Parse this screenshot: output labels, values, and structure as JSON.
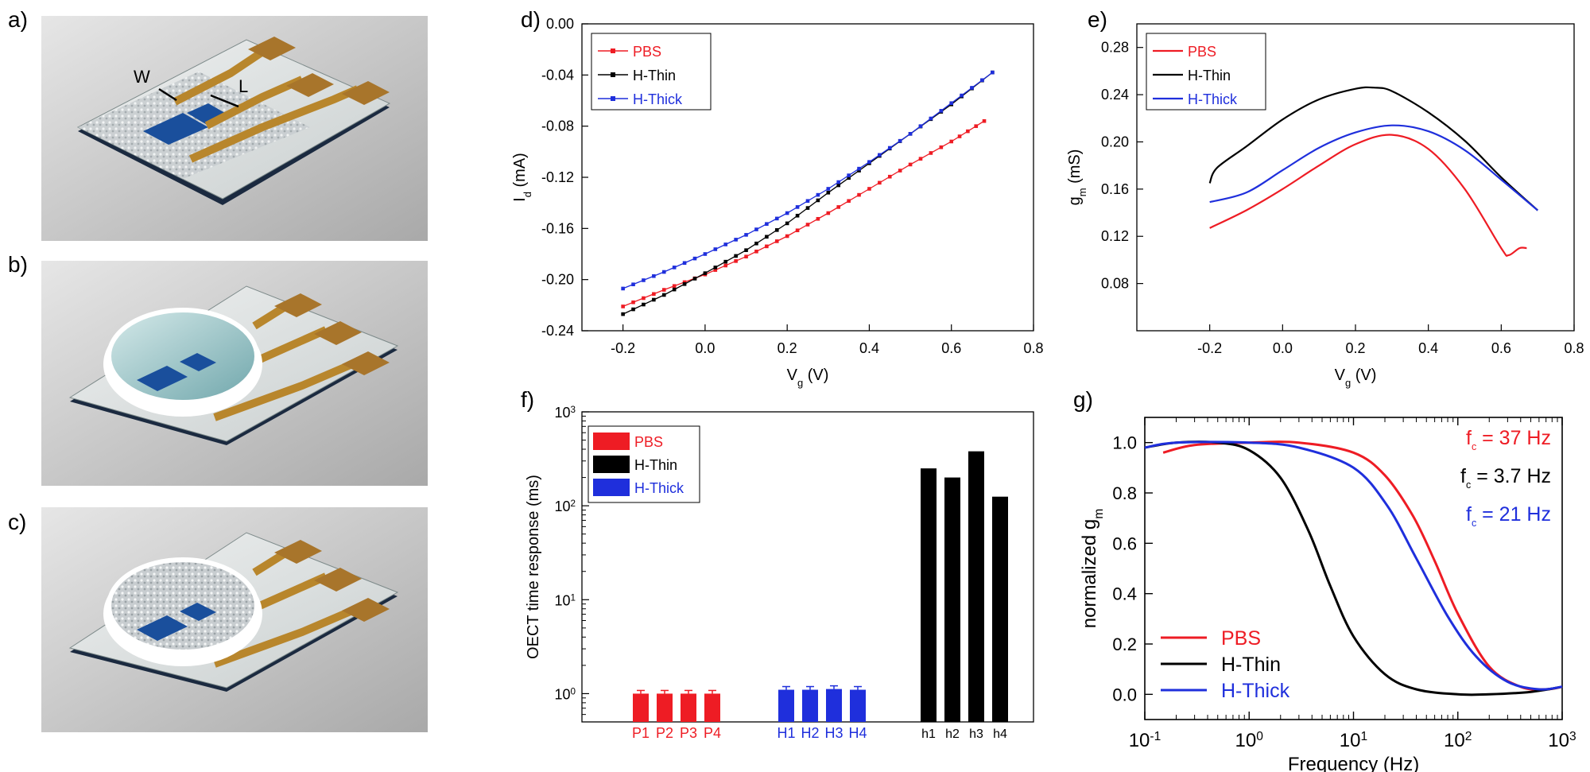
{
  "panel_labels": [
    "a)",
    "b)",
    "c)",
    "d)",
    "e)",
    "f)",
    "g)"
  ],
  "device_labels": {
    "width": "W",
    "length": "L"
  },
  "colors": {
    "pbs": "#ee1c24",
    "h_thin": "#000000",
    "h_thick": "#1f2fdc",
    "gold": "#b8862c",
    "pad": "#a8752b",
    "channel": "#1a4f9c",
    "substrate": "#d8dcdc"
  },
  "chart_data": [
    {
      "id": "d",
      "type": "line",
      "xlabel": "V",
      "xlabel_sub": "g",
      "xlabel_unit": " (V)",
      "ylabel": "I",
      "ylabel_sub": "d",
      "ylabel_unit": " (mA)",
      "xlim": [
        -0.3,
        0.8
      ],
      "ylim": [
        -0.24,
        0.0
      ],
      "xticks": [
        "-0.2",
        "0.0",
        "0.2",
        "0.4",
        "0.6",
        "0.8"
      ],
      "yticks": [
        "0.00",
        "-0.04",
        "-0.08",
        "-0.12",
        "-0.16",
        "-0.20",
        "-0.24"
      ],
      "legend": [
        "PBS",
        "H-Thin",
        "H-Thick"
      ],
      "series": [
        {
          "name": "PBS",
          "x": [
            -0.2,
            -0.1,
            0.0,
            0.1,
            0.2,
            0.3,
            0.4,
            0.5,
            0.6,
            0.68
          ],
          "y": [
            -0.221,
            -0.208,
            -0.196,
            -0.182,
            -0.166,
            -0.148,
            -0.129,
            -0.11,
            -0.092,
            -0.076
          ]
        },
        {
          "name": "H-Thin",
          "x": [
            -0.2,
            -0.1,
            0.0,
            0.1,
            0.2,
            0.3,
            0.4,
            0.5,
            0.6,
            0.7
          ],
          "y": [
            -0.227,
            -0.212,
            -0.195,
            -0.177,
            -0.156,
            -0.132,
            -0.109,
            -0.086,
            -0.063,
            -0.038
          ]
        },
        {
          "name": "H-Thick",
          "x": [
            -0.2,
            -0.1,
            0.0,
            0.1,
            0.2,
            0.3,
            0.4,
            0.5,
            0.6,
            0.7
          ],
          "y": [
            -0.207,
            -0.194,
            -0.18,
            -0.165,
            -0.148,
            -0.129,
            -0.108,
            -0.086,
            -0.062,
            -0.038
          ]
        }
      ]
    },
    {
      "id": "e",
      "type": "line",
      "xlabel": "V",
      "xlabel_sub": "g",
      "xlabel_unit": " (V)",
      "ylabel": "g",
      "ylabel_sub": "m",
      "ylabel_unit": " (mS)",
      "xlim": [
        -0.4,
        0.8
      ],
      "ylim": [
        0.04,
        0.3
      ],
      "xticks": [
        "-0.2",
        "0.0",
        "0.2",
        "0.4",
        "0.6",
        "0.8"
      ],
      "yticks": [
        "0.08",
        "0.12",
        "0.16",
        "0.20",
        "0.24",
        "0.28"
      ],
      "legend": [
        "PBS",
        "H-Thin",
        "H-Thick"
      ],
      "series": [
        {
          "name": "PBS",
          "x": [
            -0.2,
            -0.1,
            0.0,
            0.1,
            0.2,
            0.3,
            0.4,
            0.5,
            0.6,
            0.62,
            0.65,
            0.67
          ],
          "y": [
            0.127,
            0.142,
            0.16,
            0.18,
            0.198,
            0.206,
            0.194,
            0.16,
            0.11,
            0.104,
            0.11,
            0.11
          ]
        },
        {
          "name": "H-Thin",
          "x": [
            -0.2,
            -0.18,
            -0.1,
            0.0,
            0.1,
            0.2,
            0.25,
            0.3,
            0.4,
            0.5,
            0.6,
            0.7
          ],
          "y": [
            0.165,
            0.178,
            0.196,
            0.219,
            0.236,
            0.245,
            0.246,
            0.243,
            0.225,
            0.201,
            0.17,
            0.142
          ]
        },
        {
          "name": "H-Thick",
          "x": [
            -0.2,
            -0.1,
            0.0,
            0.1,
            0.2,
            0.3,
            0.4,
            0.5,
            0.6,
            0.7
          ],
          "y": [
            0.149,
            0.157,
            0.176,
            0.195,
            0.208,
            0.214,
            0.209,
            0.193,
            0.168,
            0.142
          ]
        }
      ]
    },
    {
      "id": "f",
      "type": "bar",
      "ylabel": "OECT time response (ms)",
      "yscale": "log",
      "ylim": [
        0.5,
        1000
      ],
      "yticks": [
        {
          "base": "10",
          "exp": "0",
          "value": 1
        },
        {
          "base": "10",
          "exp": "1",
          "value": 10
        },
        {
          "base": "10",
          "exp": "2",
          "value": 100
        },
        {
          "base": "10",
          "exp": "3",
          "value": 1000
        }
      ],
      "legend": [
        "PBS",
        "H-Thin",
        "H-Thick"
      ],
      "categories": [
        "P1",
        "P2",
        "P3",
        "P4",
        "H1",
        "H2",
        "H3",
        "H4",
        "h1",
        "h2",
        "h3",
        "h4"
      ],
      "values": [
        1.0,
        1.0,
        1.0,
        1.0,
        1.1,
        1.1,
        1.12,
        1.1,
        250,
        200,
        380,
        125
      ],
      "groups": [
        "PBS",
        "PBS",
        "PBS",
        "PBS",
        "H-Thick",
        "H-Thick",
        "H-Thick",
        "H-Thick",
        "H-Thin",
        "H-Thin",
        "H-Thin",
        "H-Thin"
      ]
    },
    {
      "id": "g",
      "type": "line",
      "xlabel": "Frequency (Hz)",
      "ylabel": "normalized g",
      "ylabel_sub": "m",
      "xscale": "log",
      "xlim": [
        0.1,
        1000
      ],
      "ylim": [
        -0.1,
        1.1
      ],
      "xticks": [
        {
          "base": "10",
          "exp": "-1"
        },
        {
          "base": "10",
          "exp": "0"
        },
        {
          "base": "10",
          "exp": "1"
        },
        {
          "base": "10",
          "exp": "2"
        },
        {
          "base": "10",
          "exp": "3"
        }
      ],
      "yticks": [
        "0.0",
        "0.2",
        "0.4",
        "0.6",
        "0.8",
        "1.0"
      ],
      "legend": [
        "PBS",
        "H-Thin",
        "H-Thick"
      ],
      "annotations": [
        {
          "prefix": "f",
          "sub": "c",
          "text": "= 37 Hz",
          "series": "PBS"
        },
        {
          "prefix": "f",
          "sub": "c",
          "text": "= 3.7 Hz",
          "series": "H-Thin"
        },
        {
          "prefix": "f",
          "sub": "c",
          "text": "= 21 Hz",
          "series": "H-Thick"
        }
      ],
      "series": [
        {
          "name": "PBS",
          "x": [
            0.15,
            0.3,
            1,
            3,
            10,
            20,
            37,
            60,
            100,
            200,
            400,
            700,
            1000
          ],
          "y": [
            0.96,
            0.99,
            1.0,
            1.0,
            0.96,
            0.87,
            0.71,
            0.53,
            0.32,
            0.11,
            0.03,
            0.02,
            0.03
          ]
        },
        {
          "name": "H-Thin",
          "x": [
            0.1,
            0.2,
            0.5,
            1,
            2,
            3.7,
            6,
            10,
            20,
            40,
            100,
            200,
            500,
            1000
          ],
          "y": [
            0.98,
            1.0,
            1.0,
            0.97,
            0.86,
            0.65,
            0.43,
            0.23,
            0.08,
            0.02,
            0.0,
            0.0,
            0.01,
            0.03
          ]
        },
        {
          "name": "H-Thick",
          "x": [
            0.1,
            0.2,
            1,
            3,
            10,
            21,
            40,
            80,
            150,
            300,
            600,
            1000
          ],
          "y": [
            0.98,
            1.0,
            1.0,
            0.98,
            0.9,
            0.75,
            0.54,
            0.31,
            0.15,
            0.05,
            0.02,
            0.03
          ]
        }
      ]
    }
  ]
}
